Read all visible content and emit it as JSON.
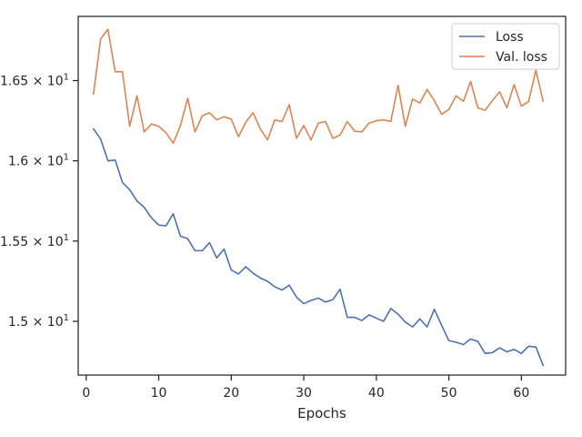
{
  "chart_data": {
    "type": "line",
    "title": "",
    "xlabel": "Epochs",
    "ylabel": "",
    "xlim": [
      -1.1,
      66.1
    ],
    "ylim": [
      14.665,
      16.9
    ],
    "xticks": [
      0,
      10,
      20,
      30,
      40,
      50,
      60
    ],
    "xtick_labels": [
      "0",
      "10",
      "20",
      "30",
      "40",
      "50",
      "60"
    ],
    "yticks": [
      15.0,
      15.5,
      16.0,
      16.5
    ],
    "ytick_labels": [
      {
        "mant": "1.5",
        "exp": "1"
      },
      {
        "mant": "1.55",
        "exp": "1"
      },
      {
        "mant": "1.6",
        "exp": "1"
      },
      {
        "mant": "1.65",
        "exp": "1"
      }
    ],
    "times_sign": "×",
    "tick_base": "10",
    "grid": false,
    "legend_position": "upper right",
    "series": [
      {
        "name": "Loss",
        "color": "#4c72b0",
        "x": [
          1,
          2,
          3,
          4,
          5,
          6,
          7,
          8,
          9,
          10,
          11,
          12,
          13,
          14,
          15,
          16,
          17,
          18,
          19,
          20,
          21,
          22,
          23,
          24,
          25,
          26,
          27,
          28,
          29,
          30,
          31,
          32,
          33,
          34,
          35,
          36,
          37,
          38,
          39,
          40,
          41,
          42,
          43,
          44,
          45,
          46,
          47,
          48,
          49,
          50,
          51,
          52,
          53,
          54,
          55,
          56,
          57,
          58,
          59,
          60,
          61,
          62,
          63
        ],
        "values": [
          16.2,
          16.135,
          16.0,
          16.005,
          15.865,
          15.82,
          15.75,
          15.71,
          15.645,
          15.6,
          15.595,
          15.67,
          15.53,
          15.515,
          15.44,
          15.44,
          15.49,
          15.395,
          15.45,
          15.32,
          15.295,
          15.34,
          15.3,
          15.27,
          15.25,
          15.215,
          15.195,
          15.225,
          15.15,
          15.11,
          15.13,
          15.145,
          15.12,
          15.135,
          15.2,
          15.025,
          15.025,
          15.005,
          15.04,
          15.02,
          15.0,
          15.08,
          15.045,
          14.995,
          14.965,
          15.015,
          14.965,
          15.075,
          14.975,
          14.88,
          14.87,
          14.855,
          14.89,
          14.875,
          14.8,
          14.805,
          14.835,
          14.81,
          14.825,
          14.8,
          14.845,
          14.84,
          14.725
        ]
      },
      {
        "name": "Val. loss",
        "color": "#dd8452",
        "x": [
          1,
          2,
          3,
          4,
          5,
          6,
          7,
          8,
          9,
          10,
          11,
          12,
          13,
          14,
          15,
          16,
          17,
          18,
          19,
          20,
          21,
          22,
          23,
          24,
          25,
          26,
          27,
          28,
          29,
          30,
          31,
          32,
          33,
          34,
          35,
          36,
          37,
          38,
          39,
          40,
          41,
          42,
          43,
          44,
          45,
          46,
          47,
          48,
          49,
          50,
          51,
          52,
          53,
          54,
          55,
          56,
          57,
          58,
          59,
          60,
          61,
          62,
          63
        ],
        "values": [
          16.415,
          16.76,
          16.82,
          16.555,
          16.555,
          16.215,
          16.405,
          16.18,
          16.23,
          16.215,
          16.175,
          16.11,
          16.22,
          16.39,
          16.18,
          16.28,
          16.3,
          16.255,
          16.275,
          16.26,
          16.15,
          16.24,
          16.3,
          16.2,
          16.13,
          16.255,
          16.245,
          16.35,
          16.14,
          16.22,
          16.13,
          16.235,
          16.245,
          16.14,
          16.16,
          16.245,
          16.185,
          16.18,
          16.235,
          16.25,
          16.255,
          16.245,
          16.47,
          16.215,
          16.385,
          16.36,
          16.445,
          16.375,
          16.29,
          16.32,
          16.405,
          16.37,
          16.495,
          16.33,
          16.315,
          16.375,
          16.43,
          16.33,
          16.475,
          16.34,
          16.37,
          16.565,
          16.37
        ]
      }
    ]
  }
}
